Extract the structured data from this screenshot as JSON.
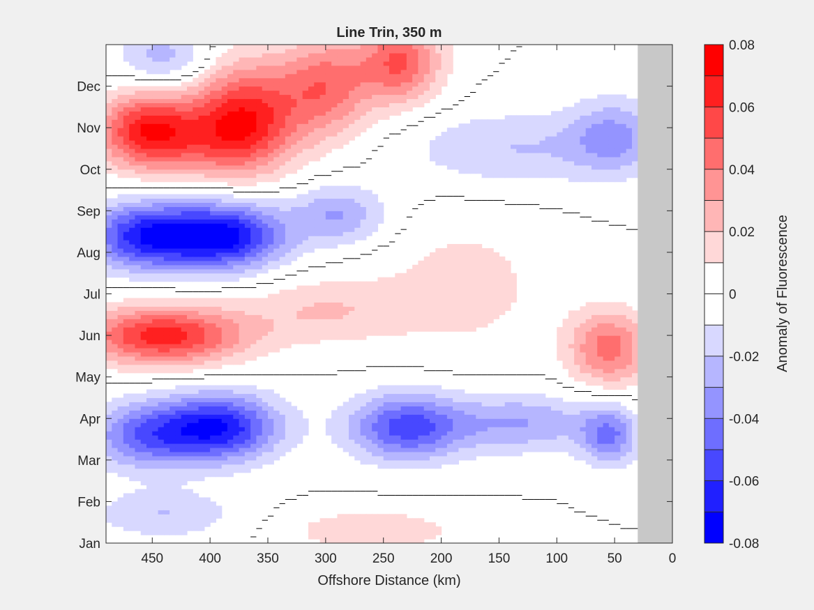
{
  "chart_data": {
    "type": "heatmap",
    "title": "Line Trin, 350 m",
    "xlabel": "Offshore Distance (km)",
    "ylabel": "",
    "xlim": [
      490,
      0
    ],
    "x_reversed": true,
    "x_ticks": [
      450,
      400,
      350,
      300,
      250,
      200,
      150,
      100,
      50,
      0
    ],
    "y_ticks": [
      "Jan",
      "Feb",
      "Mar",
      "Apr",
      "May",
      "Jun",
      "Jul",
      "Aug",
      "Sep",
      "Oct",
      "Nov",
      "Dec"
    ],
    "colorbar": {
      "label": "Anomaly of Fluorescence",
      "range": [
        -0.08,
        0.08
      ],
      "ticks": [
        0.08,
        0.06,
        0.04,
        0.02,
        0,
        -0.02,
        -0.04,
        -0.06,
        -0.08
      ],
      "levels": 16,
      "colors": [
        "#0000ff",
        "#2020ff",
        "#4848ff",
        "#6e6eff",
        "#9494ff",
        "#b6b6ff",
        "#d8d8ff",
        "#ffffff",
        "#ffffff",
        "#ffd8d8",
        "#ffb6b6",
        "#ff9494",
        "#ff6e6e",
        "#ff4848",
        "#ff2020",
        "#ff0000"
      ]
    },
    "no_data_region": {
      "x_from": 30,
      "x_to": 0,
      "color": "#c8c8c8"
    },
    "zero_contour_color": "#000000",
    "grid": false,
    "month_axis": [
      "Jan",
      "Feb",
      "Mar",
      "Apr",
      "May",
      "Jun",
      "Jul",
      "Aug",
      "Sep",
      "Oct",
      "Nov",
      "Dec",
      "Jan"
    ],
    "blobs": [
      {
        "x": 455,
        "month": 10.0,
        "v": 0.05,
        "rx": 40,
        "rm": 0.9
      },
      {
        "x": 370,
        "month": 10.3,
        "v": 0.06,
        "rx": 45,
        "rm": 1.3
      },
      {
        "x": 300,
        "month": 11.0,
        "v": 0.045,
        "rx": 40,
        "rm": 1.2
      },
      {
        "x": 235,
        "month": 11.6,
        "v": 0.05,
        "rx": 35,
        "rm": 1.0
      },
      {
        "x": 420,
        "month": 9.7,
        "v": 0.03,
        "rx": 70,
        "rm": 0.9
      },
      {
        "x": 440,
        "month": 11.7,
        "v": -0.025,
        "rx": 40,
        "rm": 0.7
      },
      {
        "x": 140,
        "month": 9.5,
        "v": -0.02,
        "rx": 90,
        "rm": 0.9
      },
      {
        "x": 50,
        "month": 9.8,
        "v": -0.03,
        "rx": 40,
        "rm": 0.9
      },
      {
        "x": 455,
        "month": 7.4,
        "v": -0.065,
        "rx": 50,
        "rm": 0.8
      },
      {
        "x": 385,
        "month": 7.4,
        "v": -0.07,
        "rx": 50,
        "rm": 0.8
      },
      {
        "x": 290,
        "month": 7.9,
        "v": -0.03,
        "rx": 40,
        "rm": 0.7
      },
      {
        "x": 440,
        "month": 5.0,
        "v": 0.065,
        "rx": 70,
        "rm": 0.7
      },
      {
        "x": 300,
        "month": 5.6,
        "v": 0.02,
        "rx": 70,
        "rm": 0.8
      },
      {
        "x": 180,
        "month": 6.2,
        "v": 0.015,
        "rx": 70,
        "rm": 1.6
      },
      {
        "x": 55,
        "month": 4.7,
        "v": 0.045,
        "rx": 35,
        "rm": 0.9
      },
      {
        "x": 390,
        "month": 2.8,
        "v": -0.065,
        "rx": 50,
        "rm": 0.8
      },
      {
        "x": 230,
        "month": 2.8,
        "v": -0.055,
        "rx": 50,
        "rm": 0.8
      },
      {
        "x": 455,
        "month": 2.6,
        "v": -0.045,
        "rx": 50,
        "rm": 0.8
      },
      {
        "x": 130,
        "month": 2.9,
        "v": -0.03,
        "rx": 60,
        "rm": 0.7
      },
      {
        "x": 55,
        "month": 2.6,
        "v": -0.04,
        "rx": 25,
        "rm": 0.7
      },
      {
        "x": 260,
        "month": 0.3,
        "v": 0.02,
        "rx": 70,
        "rm": 0.5
      },
      {
        "x": 440,
        "month": 0.7,
        "v": -0.02,
        "rx": 60,
        "rm": 0.6
      }
    ]
  }
}
